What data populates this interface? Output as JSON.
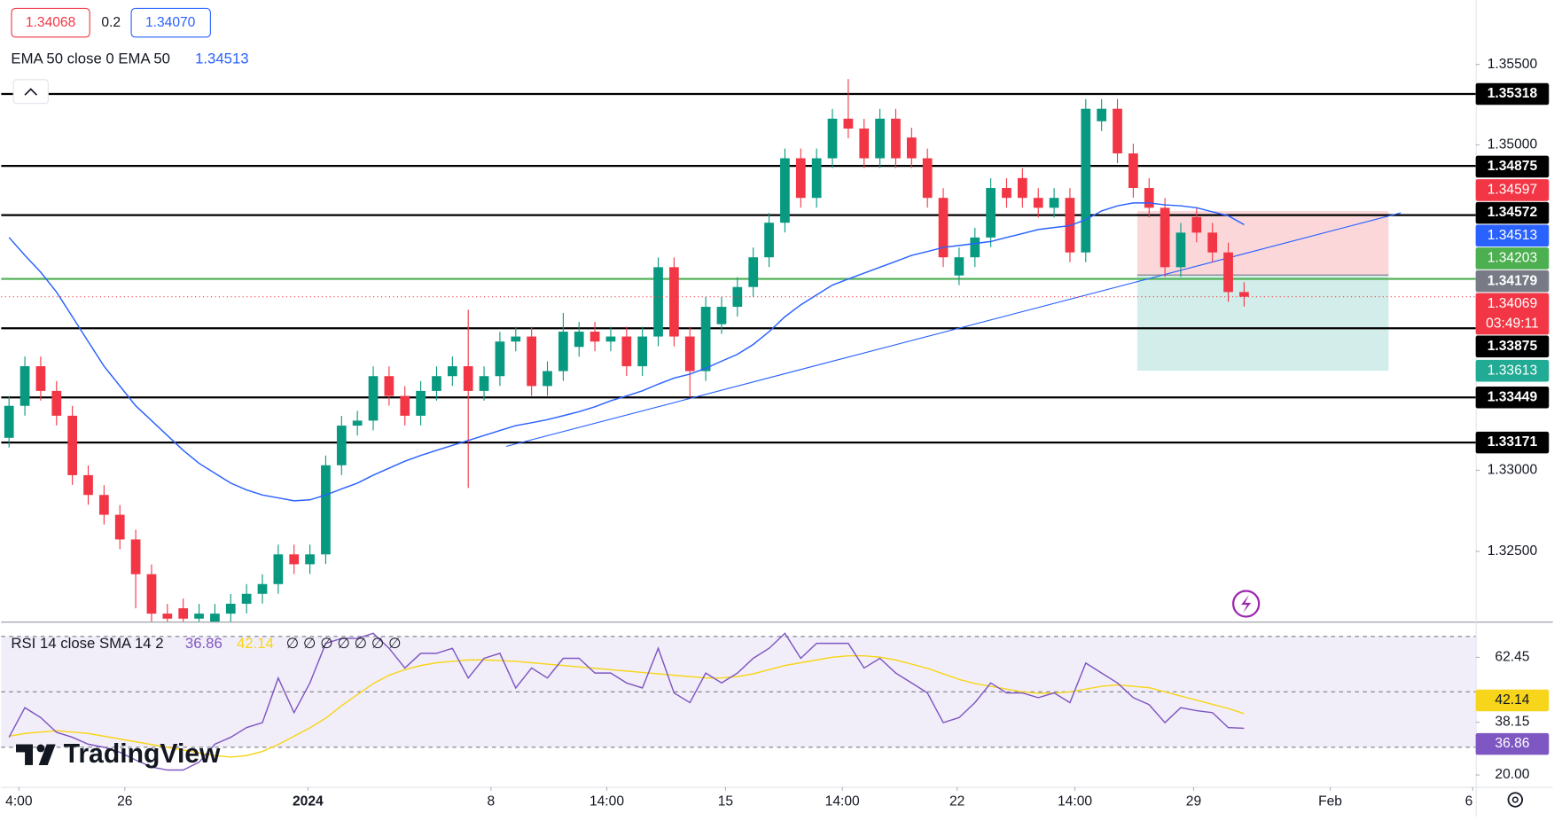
{
  "chart_data": {
    "type": "candlestick",
    "quote": {
      "bid": "1.34068",
      "spread": "0.2",
      "ask": "1.34070"
    },
    "indicator_label": "EMA 50 close 0 EMA 50",
    "xlim": [
      -0.5,
      92.625
    ],
    "ylim": [
      1.32068,
      1.35897
    ],
    "yticks": [
      {
        "value": 1.325,
        "label": "1.32500"
      },
      {
        "value": 1.33,
        "label": "1.33000"
      },
      {
        "value": 1.35,
        "label": "1.35000"
      },
      {
        "value": 1.355,
        "label": "1.35500"
      }
    ],
    "xticks": [
      {
        "value": 0.625,
        "label": "4:00"
      },
      {
        "value": 7.3125,
        "label": "26"
      },
      {
        "value": 18.875,
        "label": "2024"
      },
      {
        "value": 30.4375,
        "label": "8"
      },
      {
        "value": 37.75,
        "label": "14:00"
      },
      {
        "value": 45.25,
        "label": "15"
      },
      {
        "value": 52.625,
        "label": "14:00"
      },
      {
        "value": 59.875,
        "label": "22"
      },
      {
        "value": 67.3125,
        "label": "14:00"
      },
      {
        "value": 74.8125,
        "label": "29"
      },
      {
        "value": 83.4375,
        "label": "Feb"
      },
      {
        "value": 92.4375,
        "label": "6"
      }
    ],
    "up_color": "#089981",
    "down_color": "#f23645",
    "open": [
      1.332,
      1.33397,
      1.33641,
      1.33489,
      1.33336,
      1.3297,
      1.32848,
      1.32726,
      1.32574,
      1.3236,
      1.32117,
      1.3215,
      1.32086,
      1.3205,
      1.32117,
      1.32178,
      1.32239,
      1.32299,
      1.32482,
      1.32421,
      1.32482,
      1.33031,
      1.33275,
      1.33306,
      1.3358,
      1.33458,
      1.33336,
      1.33489,
      1.3358,
      1.33641,
      1.33489,
      1.3358,
      1.33793,
      1.33824,
      1.33519,
      1.33611,
      1.3376,
      1.33854,
      1.33793,
      1.33824,
      1.33641,
      1.33824,
      1.34251,
      1.33824,
      1.33611,
      1.339,
      1.34007,
      1.34129,
      1.34312,
      1.34525,
      1.34922,
      1.34678,
      1.34922,
      1.35166,
      1.35105,
      1.34922,
      1.35166,
      1.3505,
      1.34922,
      1.34678,
      1.342,
      1.34312,
      1.34434,
      1.34739,
      1.348,
      1.34678,
      1.34617,
      1.34678,
      1.34342,
      1.3515,
      1.35227,
      1.34952,
      1.34739,
      1.34617,
      1.34251,
      1.3456,
      1.34464,
      1.34342,
      1.34098
    ],
    "high": [
      1.33457,
      1.33701,
      1.33701,
      1.33549,
      1.33396,
      1.3303,
      1.32908,
      1.32786,
      1.32634,
      1.3242,
      1.32177,
      1.3221,
      1.32177,
      1.32177,
      1.32238,
      1.32299,
      1.32359,
      1.32542,
      1.32542,
      1.32542,
      1.33091,
      1.33335,
      1.33366,
      1.3364,
      1.3364,
      1.33518,
      1.33549,
      1.3364,
      1.33701,
      1.33989,
      1.3364,
      1.33853,
      1.33884,
      1.33884,
      1.33671,
      1.3397,
      1.33914,
      1.33914,
      1.33884,
      1.33884,
      1.33884,
      1.34311,
      1.34311,
      1.33884,
      1.34067,
      1.34067,
      1.34189,
      1.34372,
      1.34585,
      1.34982,
      1.34982,
      1.34982,
      1.35226,
      1.3541,
      1.35165,
      1.35226,
      1.35226,
      1.3511,
      1.34982,
      1.34738,
      1.34372,
      1.34494,
      1.34799,
      1.34799,
      1.3486,
      1.34738,
      1.34738,
      1.34738,
      1.35287,
      1.35287,
      1.35287,
      1.35012,
      1.34799,
      1.34677,
      1.34524,
      1.3462,
      1.34524,
      1.34402,
      1.34158
    ],
    "low": [
      1.3314,
      1.33337,
      1.33429,
      1.33276,
      1.3291,
      1.32788,
      1.32666,
      1.32514,
      1.3215,
      1.32057,
      1.32026,
      1.32026,
      1.32026,
      1.3199,
      1.32057,
      1.32118,
      1.32179,
      1.32239,
      1.32361,
      1.32361,
      1.32422,
      1.32971,
      1.33215,
      1.33246,
      1.33398,
      1.33276,
      1.33276,
      1.33429,
      1.3352,
      1.32891,
      1.33429,
      1.3352,
      1.33733,
      1.33459,
      1.33459,
      1.33551,
      1.337,
      1.33733,
      1.33733,
      1.33581,
      1.33581,
      1.33764,
      1.33764,
      1.3345,
      1.33551,
      1.3384,
      1.33947,
      1.34069,
      1.34252,
      1.34465,
      1.34618,
      1.34618,
      1.34862,
      1.35045,
      1.34862,
      1.34862,
      1.34862,
      1.34862,
      1.34618,
      1.34252,
      1.3414,
      1.34252,
      1.34374,
      1.34618,
      1.34618,
      1.34557,
      1.34557,
      1.34282,
      1.34282,
      1.3509,
      1.34892,
      1.34679,
      1.34557,
      1.34191,
      1.34191,
      1.34404,
      1.34282,
      1.34038,
      1.34009
    ],
    "close": [
      1.33397,
      1.33641,
      1.33489,
      1.33336,
      1.3297,
      1.32848,
      1.32726,
      1.32574,
      1.3236,
      1.32117,
      1.32086,
      1.32086,
      1.32117,
      1.32117,
      1.32178,
      1.32239,
      1.32299,
      1.32482,
      1.32421,
      1.32482,
      1.33031,
      1.33275,
      1.33306,
      1.3358,
      1.33458,
      1.33336,
      1.33489,
      1.3358,
      1.33641,
      1.33489,
      1.3358,
      1.33793,
      1.33824,
      1.33519,
      1.33611,
      1.33854,
      1.33854,
      1.33793,
      1.33824,
      1.33641,
      1.33824,
      1.34251,
      1.33824,
      1.33611,
      1.34007,
      1.34007,
      1.34129,
      1.34312,
      1.34525,
      1.34922,
      1.34678,
      1.34922,
      1.35166,
      1.35105,
      1.34922,
      1.35166,
      1.34922,
      1.34922,
      1.34678,
      1.34312,
      1.34312,
      1.34434,
      1.34739,
      1.34678,
      1.34678,
      1.34617,
      1.34678,
      1.34342,
      1.35227,
      1.35227,
      1.34952,
      1.34739,
      1.34617,
      1.34251,
      1.34464,
      1.34464,
      1.34342,
      1.34098,
      1.34069
    ],
    "countdown": "03:49:11",
    "ema": {
      "color": "#2962ff",
      "values": [
        1.34434,
        1.34324,
        1.3422,
        1.34098,
        1.33946,
        1.33793,
        1.33641,
        1.33519,
        1.33397,
        1.33306,
        1.33214,
        1.33123,
        1.33043,
        1.32982,
        1.32921,
        1.32879,
        1.32848,
        1.3283,
        1.32812,
        1.32818,
        1.32848,
        1.32885,
        1.32921,
        1.3297,
        1.33013,
        1.33056,
        1.33092,
        1.33123,
        1.33153,
        1.33184,
        1.33214,
        1.33245,
        1.33275,
        1.33293,
        1.33312,
        1.33336,
        1.33361,
        1.33391,
        1.33428,
        1.33458,
        1.33489,
        1.33531,
        1.33568,
        1.33592,
        1.33629,
        1.33672,
        1.33714,
        1.33775,
        1.33854,
        1.33946,
        1.34019,
        1.3408,
        1.34141,
        1.34178,
        1.34214,
        1.34251,
        1.34287,
        1.34324,
        1.34348,
        1.34373,
        1.34385,
        1.34397,
        1.34409,
        1.34434,
        1.34458,
        1.34483,
        1.34495,
        1.34507,
        1.34544,
        1.34598,
        1.34629,
        1.34647,
        1.34647,
        1.34635,
        1.34629,
        1.34617,
        1.34592,
        1.34568,
        1.34513
      ]
    },
    "trendline": {
      "color": "#2962ff",
      "x": [
        31.4,
        87.9
      ],
      "values": [
        1.33147,
        1.34586
      ]
    },
    "levels": [
      {
        "value": 1.35318,
        "color": "#000000"
      },
      {
        "value": 1.34875,
        "color": "#000000"
      },
      {
        "value": 1.34572,
        "color": "#000000"
      },
      {
        "value": 1.33875,
        "color": "#000000"
      },
      {
        "value": 1.33449,
        "color": "#000000"
      },
      {
        "value": 1.33171,
        "color": "#000000"
      },
      {
        "value": 1.34179,
        "color": "#4caf50",
        "badge": "#787b86"
      }
    ],
    "position": {
      "stop": 1.34597,
      "entry": 1.34203,
      "target": 1.33613,
      "stop_color": "#f23645",
      "entry_color": "#4caf50",
      "target_color": "#22ab94"
    },
    "rsi": {
      "label": "RSI 14 close SMA 14 2",
      "na": "∅ ∅ ∅ ∅ ∅ ∅ ∅",
      "color": "#7e57c2",
      "sma_color": "#f7d51a",
      "ylim": [
        15.71,
        75.36
      ],
      "levels": [
        70,
        50,
        30
      ],
      "yticks": [
        {
          "value": 20,
          "label": "20.00"
        },
        38.15,
        62.45
      ],
      "values": [
        33.6,
        44.3,
        40.7,
        35.4,
        33.6,
        31.1,
        30.0,
        28.2,
        25.4,
        22.9,
        21.8,
        21.8,
        24.6,
        31.1,
        33.6,
        37.1,
        38.9,
        55.0,
        42.5,
        53.2,
        67.5,
        69.3,
        69.3,
        71.1,
        65.7,
        58.6,
        63.9,
        63.9,
        65.7,
        55.0,
        62.1,
        63.9,
        51.4,
        58.6,
        55.0,
        62.1,
        62.1,
        56.8,
        56.8,
        53.2,
        51.4,
        65.7,
        49.6,
        46.1,
        56.8,
        53.2,
        56.8,
        62.1,
        65.7,
        71.1,
        62.1,
        67.5,
        67.5,
        67.5,
        58.6,
        62.1,
        56.8,
        53.2,
        49.6,
        38.9,
        40.7,
        46.1,
        53.2,
        49.6,
        49.6,
        47.9,
        49.6,
        46.1,
        60.4,
        56.8,
        53.2,
        47.9,
        45.4,
        38.9,
        44.3,
        43.2,
        42.5,
        37.1,
        36.86
      ],
      "sma": [
        34,
        35,
        35.5,
        36,
        35.5,
        35,
        34,
        33,
        32,
        31,
        30,
        29,
        28,
        27,
        26.5,
        27,
        28.5,
        31,
        34,
        37,
        40.5,
        45,
        49,
        53,
        56,
        58,
        59.5,
        60.5,
        61,
        61.5,
        61.5,
        61.3,
        61,
        60.5,
        60,
        59.5,
        59,
        58.5,
        58,
        57.5,
        57,
        56.5,
        56,
        55.5,
        55,
        55,
        55.5,
        56.5,
        58,
        59.5,
        60.5,
        61.5,
        62.5,
        63,
        63,
        62.5,
        61.5,
        60,
        58.5,
        56.5,
        54.5,
        53,
        52,
        51,
        50,
        49.5,
        49.5,
        50,
        51,
        52,
        52.5,
        52,
        51.5,
        50,
        48.5,
        47,
        45.5,
        44,
        42.14
      ]
    },
    "watermark": "TradingView"
  }
}
